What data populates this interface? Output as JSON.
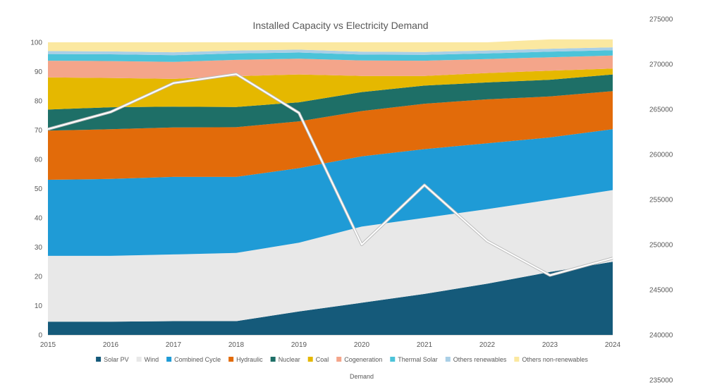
{
  "chart_data": {
    "type": "area",
    "stacked": true,
    "title": "Installed Capacity vs Electricity Demand",
    "x": [
      "2015",
      "2016",
      "2017",
      "2018",
      "2019",
      "2020",
      "2021",
      "2022",
      "2023",
      "2024"
    ],
    "ylim": [
      0,
      100
    ],
    "yticks": [
      "0",
      "10",
      "20",
      "30",
      "40",
      "50",
      "60",
      "70",
      "80",
      "90",
      "100"
    ],
    "y2lim": [
      235000,
      275000
    ],
    "y2ticks": [
      "235000",
      "240000",
      "245000",
      "250000",
      "255000",
      "260000",
      "265000",
      "270000",
      "275000"
    ],
    "legend_position": "bottom",
    "grid": false,
    "series": [
      {
        "name": "Solar PV",
        "color": "#155a7a",
        "values": [
          4.5,
          4.5,
          4.7,
          4.7,
          8.0,
          11.0,
          14.0,
          17.5,
          21.5,
          25.0
        ]
      },
      {
        "name": "Wind",
        "color": "#e8e8e8",
        "values": [
          22.5,
          22.5,
          22.8,
          23.3,
          23.5,
          26.0,
          26.0,
          25.5,
          24.7,
          24.5
        ]
      },
      {
        "name": "Combined Cycle",
        "color": "#1f9bd6",
        "values": [
          26.0,
          26.3,
          26.5,
          26.0,
          25.5,
          24.0,
          23.5,
          22.5,
          21.3,
          20.8
        ]
      },
      {
        "name": "Hydraulic",
        "color": "#e26b0a",
        "values": [
          16.8,
          17.0,
          16.9,
          17.0,
          16.0,
          15.5,
          15.5,
          15.0,
          14.0,
          13.0
        ]
      },
      {
        "name": "Nuclear",
        "color": "#1e6f67",
        "values": [
          7.2,
          7.5,
          7.1,
          6.9,
          6.5,
          6.5,
          6.2,
          5.8,
          5.7,
          5.7
        ]
      },
      {
        "name": "Coal",
        "color": "#e5b800",
        "values": [
          11.0,
          10.0,
          9.5,
          10.5,
          9.5,
          5.5,
          3.3,
          3.2,
          3.1,
          2.0
        ]
      },
      {
        "name": "Cogeneration",
        "color": "#f4a58a",
        "values": [
          5.7,
          5.8,
          5.8,
          5.6,
          5.4,
          5.3,
          5.2,
          4.8,
          4.6,
          4.5
        ]
      },
      {
        "name": "Thermal Solar",
        "color": "#4cc3d9",
        "values": [
          2.3,
          2.3,
          2.3,
          2.2,
          2.1,
          2.0,
          2.0,
          1.9,
          1.9,
          1.8
        ]
      },
      {
        "name": "Others renewables",
        "color": "#a9cfe6",
        "values": [
          1.0,
          1.0,
          1.0,
          1.0,
          1.0,
          1.0,
          1.0,
          1.0,
          1.0,
          1.0
        ]
      },
      {
        "name": "Others non-renewables",
        "color": "#fbe8a0",
        "values": [
          3.0,
          3.1,
          3.4,
          2.8,
          2.5,
          3.2,
          3.3,
          2.8,
          3.2,
          2.7
        ]
      }
    ],
    "line_series": {
      "name": "Demand",
      "axis": "secondary",
      "color": "#ffffff",
      "values": [
        262800,
        264700,
        267900,
        268900,
        264600,
        250000,
        256600,
        250400,
        246600,
        248500
      ]
    }
  }
}
